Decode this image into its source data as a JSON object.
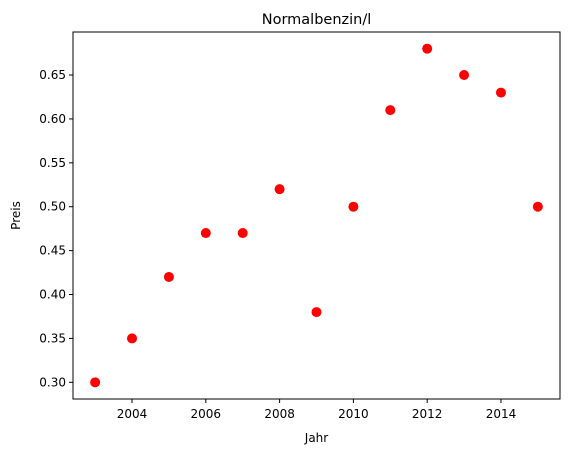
{
  "chart_data": {
    "type": "scatter",
    "title": "Normalbenzin/l",
    "xlabel": "Jahr",
    "ylabel": "Preis",
    "x": [
      2003,
      2004,
      2005,
      2006,
      2007,
      2008,
      2009,
      2010,
      2011,
      2012,
      2013,
      2014,
      2015
    ],
    "y": [
      0.3,
      0.35,
      0.42,
      0.47,
      0.47,
      0.52,
      0.38,
      0.5,
      0.61,
      0.68,
      0.65,
      0.63,
      0.5
    ],
    "xlim": [
      2002.4,
      2015.6
    ],
    "ylim": [
      0.281,
      0.699
    ],
    "x_ticks": [
      2004,
      2006,
      2008,
      2010,
      2012,
      2014
    ],
    "x_tick_labels": [
      "2004",
      "2006",
      "2008",
      "2010",
      "2012",
      "2014"
    ],
    "y_ticks": [
      0.3,
      0.35,
      0.4,
      0.45,
      0.5,
      0.55,
      0.6,
      0.65
    ],
    "y_tick_labels": [
      "0.30",
      "0.35",
      "0.40",
      "0.45",
      "0.50",
      "0.55",
      "0.60",
      "0.65"
    ],
    "marker_color": "#ff0000",
    "grid": false,
    "legend": "none"
  }
}
